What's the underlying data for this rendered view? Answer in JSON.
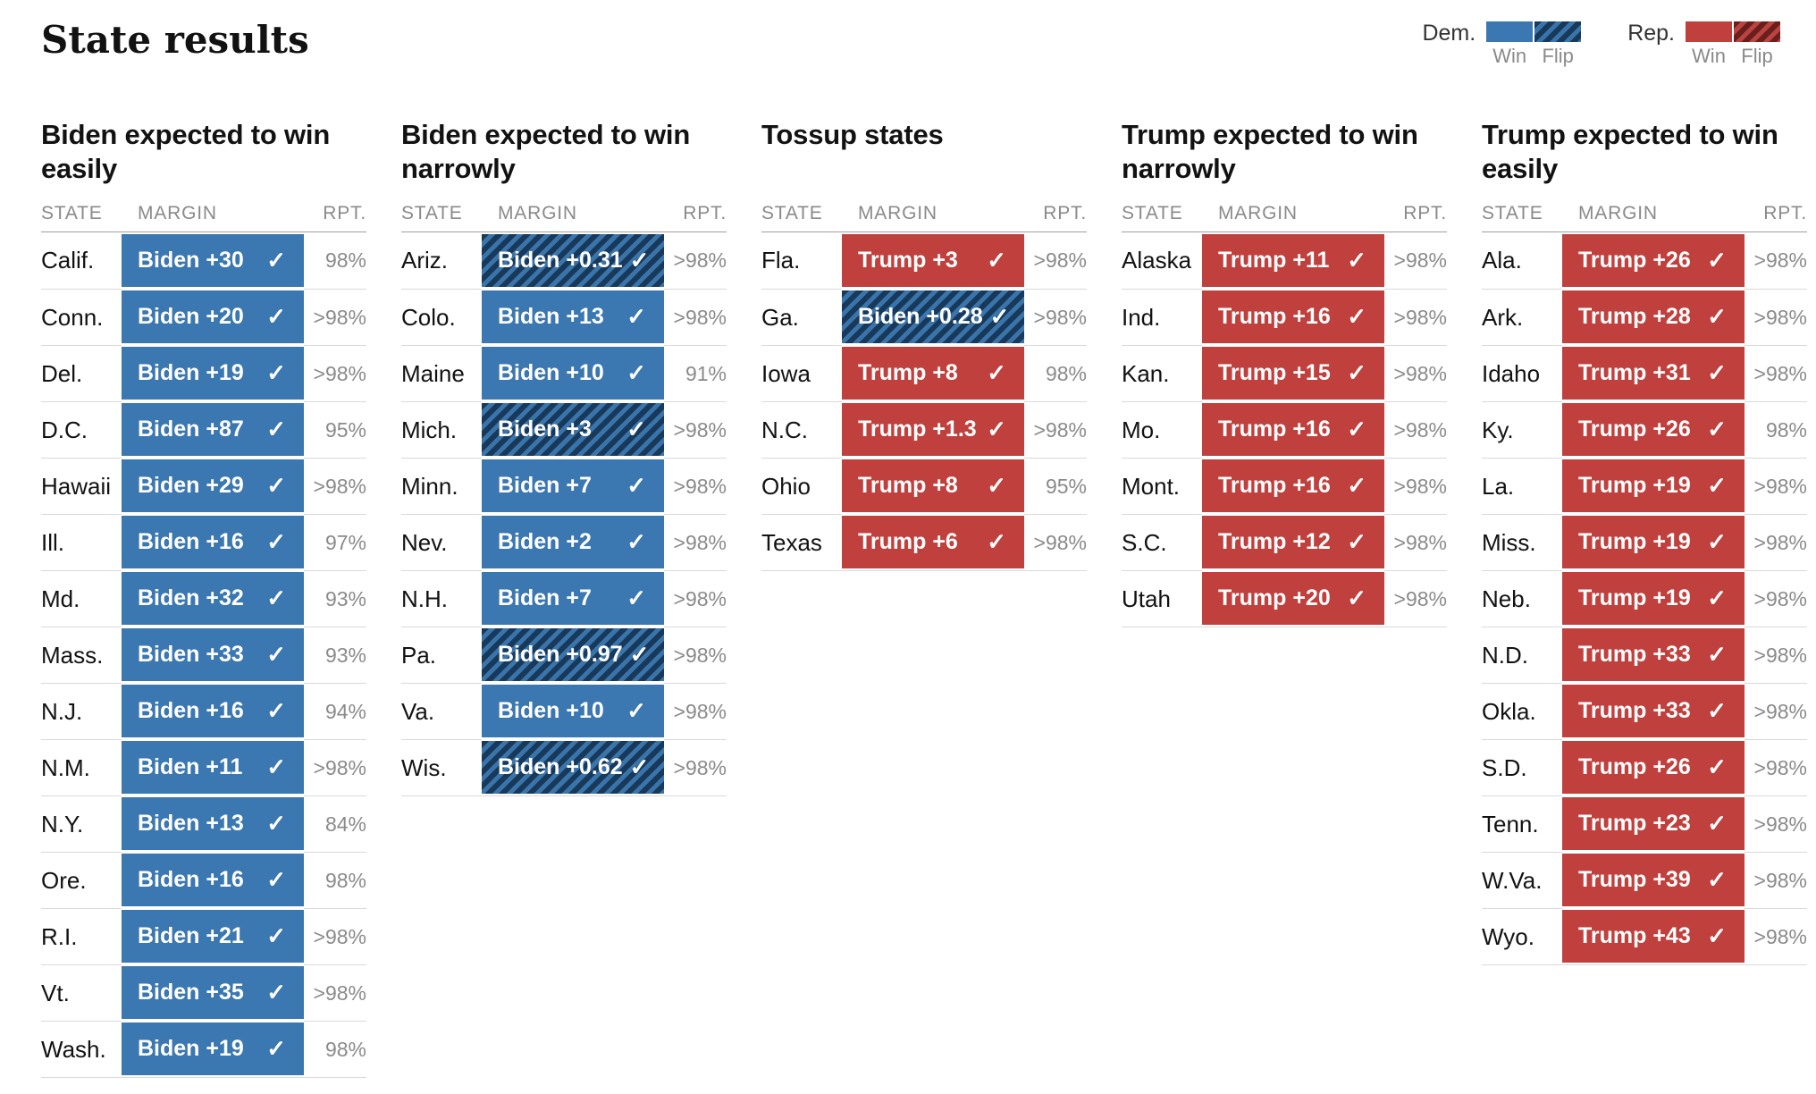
{
  "title": "State results",
  "icons": {
    "check": "✓"
  },
  "table_headers": {
    "state": "STATE",
    "margin": "MARGIN",
    "rpt": "RPT."
  },
  "colors": {
    "dem_win": "#3b77b0",
    "dem_flip_dark": "#17395c",
    "dem_flip_light": "#3b74a9",
    "rep_win": "#bf403d",
    "rep_flip_dark": "#6b1f1d",
    "rep_flip_light": "#b94440",
    "text_dark": "#121212",
    "text_gray": "#8a8a8a",
    "header_rule": "#9e9e9e",
    "row_rule": "#d9d9d9"
  },
  "legend": {
    "groups": [
      {
        "label": "Dem.",
        "party": "dem",
        "swatches": [
          {
            "kind": "win",
            "caption": "Win"
          },
          {
            "kind": "flip",
            "caption": "Flip"
          }
        ]
      },
      {
        "label": "Rep.",
        "party": "rep",
        "swatches": [
          {
            "kind": "win",
            "caption": "Win"
          },
          {
            "kind": "flip",
            "caption": "Flip"
          }
        ]
      }
    ]
  },
  "chart_data": {
    "type": "table",
    "title": "State results",
    "columns": [
      "STATE",
      "MARGIN",
      "RPT."
    ],
    "groups": [
      {
        "title": "Biden expected to win easily",
        "rows": [
          {
            "state": "Calif.",
            "margin": "Biden +30",
            "party": "dem",
            "flip": false,
            "called": true,
            "rpt": "98%"
          },
          {
            "state": "Conn.",
            "margin": "Biden +20",
            "party": "dem",
            "flip": false,
            "called": true,
            "rpt": ">98%"
          },
          {
            "state": "Del.",
            "margin": "Biden +19",
            "party": "dem",
            "flip": false,
            "called": true,
            "rpt": ">98%"
          },
          {
            "state": "D.C.",
            "margin": "Biden +87",
            "party": "dem",
            "flip": false,
            "called": true,
            "rpt": "95%"
          },
          {
            "state": "Hawaii",
            "margin": "Biden +29",
            "party": "dem",
            "flip": false,
            "called": true,
            "rpt": ">98%"
          },
          {
            "state": "Ill.",
            "margin": "Biden +16",
            "party": "dem",
            "flip": false,
            "called": true,
            "rpt": "97%"
          },
          {
            "state": "Md.",
            "margin": "Biden +32",
            "party": "dem",
            "flip": false,
            "called": true,
            "rpt": "93%"
          },
          {
            "state": "Mass.",
            "margin": "Biden +33",
            "party": "dem",
            "flip": false,
            "called": true,
            "rpt": "93%"
          },
          {
            "state": "N.J.",
            "margin": "Biden +16",
            "party": "dem",
            "flip": false,
            "called": true,
            "rpt": "94%"
          },
          {
            "state": "N.M.",
            "margin": "Biden +11",
            "party": "dem",
            "flip": false,
            "called": true,
            "rpt": ">98%"
          },
          {
            "state": "N.Y.",
            "margin": "Biden +13",
            "party": "dem",
            "flip": false,
            "called": true,
            "rpt": "84%"
          },
          {
            "state": "Ore.",
            "margin": "Biden +16",
            "party": "dem",
            "flip": false,
            "called": true,
            "rpt": "98%"
          },
          {
            "state": "R.I.",
            "margin": "Biden +21",
            "party": "dem",
            "flip": false,
            "called": true,
            "rpt": ">98%"
          },
          {
            "state": "Vt.",
            "margin": "Biden +35",
            "party": "dem",
            "flip": false,
            "called": true,
            "rpt": ">98%"
          },
          {
            "state": "Wash.",
            "margin": "Biden +19",
            "party": "dem",
            "flip": false,
            "called": true,
            "rpt": "98%"
          }
        ]
      },
      {
        "title": "Biden expected to win narrowly",
        "rows": [
          {
            "state": "Ariz.",
            "margin": "Biden +0.31",
            "party": "dem",
            "flip": true,
            "called": true,
            "rpt": ">98%"
          },
          {
            "state": "Colo.",
            "margin": "Biden +13",
            "party": "dem",
            "flip": false,
            "called": true,
            "rpt": ">98%"
          },
          {
            "state": "Maine",
            "margin": "Biden +10",
            "party": "dem",
            "flip": false,
            "called": true,
            "rpt": "91%"
          },
          {
            "state": "Mich.",
            "margin": "Biden +3",
            "party": "dem",
            "flip": true,
            "called": true,
            "rpt": ">98%"
          },
          {
            "state": "Minn.",
            "margin": "Biden +7",
            "party": "dem",
            "flip": false,
            "called": true,
            "rpt": ">98%"
          },
          {
            "state": "Nev.",
            "margin": "Biden +2",
            "party": "dem",
            "flip": false,
            "called": true,
            "rpt": ">98%"
          },
          {
            "state": "N.H.",
            "margin": "Biden +7",
            "party": "dem",
            "flip": false,
            "called": true,
            "rpt": ">98%"
          },
          {
            "state": "Pa.",
            "margin": "Biden +0.97",
            "party": "dem",
            "flip": true,
            "called": true,
            "rpt": ">98%"
          },
          {
            "state": "Va.",
            "margin": "Biden +10",
            "party": "dem",
            "flip": false,
            "called": true,
            "rpt": ">98%"
          },
          {
            "state": "Wis.",
            "margin": "Biden +0.62",
            "party": "dem",
            "flip": true,
            "called": true,
            "rpt": ">98%"
          }
        ]
      },
      {
        "title": "Tossup states",
        "rows": [
          {
            "state": "Fla.",
            "margin": "Trump +3",
            "party": "rep",
            "flip": false,
            "called": true,
            "rpt": ">98%"
          },
          {
            "state": "Ga.",
            "margin": "Biden +0.28",
            "party": "dem",
            "flip": true,
            "called": true,
            "rpt": ">98%"
          },
          {
            "state": "Iowa",
            "margin": "Trump +8",
            "party": "rep",
            "flip": false,
            "called": true,
            "rpt": "98%"
          },
          {
            "state": "N.C.",
            "margin": "Trump +1.3",
            "party": "rep",
            "flip": false,
            "called": true,
            "rpt": ">98%"
          },
          {
            "state": "Ohio",
            "margin": "Trump +8",
            "party": "rep",
            "flip": false,
            "called": true,
            "rpt": "95%"
          },
          {
            "state": "Texas",
            "margin": "Trump +6",
            "party": "rep",
            "flip": false,
            "called": true,
            "rpt": ">98%"
          }
        ]
      },
      {
        "title": "Trump expected to win narrowly",
        "rows": [
          {
            "state": "Alaska",
            "margin": "Trump +11",
            "party": "rep",
            "flip": false,
            "called": true,
            "rpt": ">98%"
          },
          {
            "state": "Ind.",
            "margin": "Trump +16",
            "party": "rep",
            "flip": false,
            "called": true,
            "rpt": ">98%"
          },
          {
            "state": "Kan.",
            "margin": "Trump +15",
            "party": "rep",
            "flip": false,
            "called": true,
            "rpt": ">98%"
          },
          {
            "state": "Mo.",
            "margin": "Trump +16",
            "party": "rep",
            "flip": false,
            "called": true,
            "rpt": ">98%"
          },
          {
            "state": "Mont.",
            "margin": "Trump +16",
            "party": "rep",
            "flip": false,
            "called": true,
            "rpt": ">98%"
          },
          {
            "state": "S.C.",
            "margin": "Trump +12",
            "party": "rep",
            "flip": false,
            "called": true,
            "rpt": ">98%"
          },
          {
            "state": "Utah",
            "margin": "Trump +20",
            "party": "rep",
            "flip": false,
            "called": true,
            "rpt": ">98%"
          }
        ]
      },
      {
        "title": "Trump expected to win easily",
        "rows": [
          {
            "state": "Ala.",
            "margin": "Trump +26",
            "party": "rep",
            "flip": false,
            "called": true,
            "rpt": ">98%"
          },
          {
            "state": "Ark.",
            "margin": "Trump +28",
            "party": "rep",
            "flip": false,
            "called": true,
            "rpt": ">98%"
          },
          {
            "state": "Idaho",
            "margin": "Trump +31",
            "party": "rep",
            "flip": false,
            "called": true,
            "rpt": ">98%"
          },
          {
            "state": "Ky.",
            "margin": "Trump +26",
            "party": "rep",
            "flip": false,
            "called": true,
            "rpt": "98%"
          },
          {
            "state": "La.",
            "margin": "Trump +19",
            "party": "rep",
            "flip": false,
            "called": true,
            "rpt": ">98%"
          },
          {
            "state": "Miss.",
            "margin": "Trump +19",
            "party": "rep",
            "flip": false,
            "called": true,
            "rpt": ">98%"
          },
          {
            "state": "Neb.",
            "margin": "Trump +19",
            "party": "rep",
            "flip": false,
            "called": true,
            "rpt": ">98%"
          },
          {
            "state": "N.D.",
            "margin": "Trump +33",
            "party": "rep",
            "flip": false,
            "called": true,
            "rpt": ">98%"
          },
          {
            "state": "Okla.",
            "margin": "Trump +33",
            "party": "rep",
            "flip": false,
            "called": true,
            "rpt": ">98%"
          },
          {
            "state": "S.D.",
            "margin": "Trump +26",
            "party": "rep",
            "flip": false,
            "called": true,
            "rpt": ">98%"
          },
          {
            "state": "Tenn.",
            "margin": "Trump +23",
            "party": "rep",
            "flip": false,
            "called": true,
            "rpt": ">98%"
          },
          {
            "state": "W.Va.",
            "margin": "Trump +39",
            "party": "rep",
            "flip": false,
            "called": true,
            "rpt": ">98%"
          },
          {
            "state": "Wyo.",
            "margin": "Trump +43",
            "party": "rep",
            "flip": false,
            "called": true,
            "rpt": ">98%"
          }
        ]
      }
    ]
  }
}
